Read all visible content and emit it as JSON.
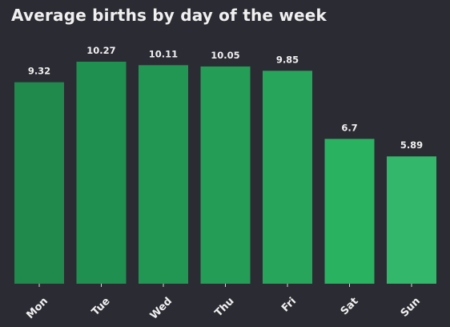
{
  "chart_data": {
    "type": "bar",
    "title": "Average births by day of the week",
    "categories": [
      "Mon",
      "Tue",
      "Wed",
      "Thu",
      "Fri",
      "Sat",
      "Sun"
    ],
    "values": [
      9.32,
      10.27,
      10.11,
      10.05,
      9.85,
      6.7,
      5.89
    ],
    "value_labels": [
      "9.32",
      "10.27",
      "10.11",
      "10.05",
      "9.85",
      "6.7",
      "5.89"
    ],
    "xlabel": "",
    "ylabel": "",
    "ylim": [
      0,
      10.27
    ],
    "grid": false,
    "legend": "none",
    "colors": [
      "#1f8a4c",
      "#209050",
      "#229753",
      "#249d57",
      "#27a65b",
      "#29b360",
      "#33b86b"
    ]
  }
}
